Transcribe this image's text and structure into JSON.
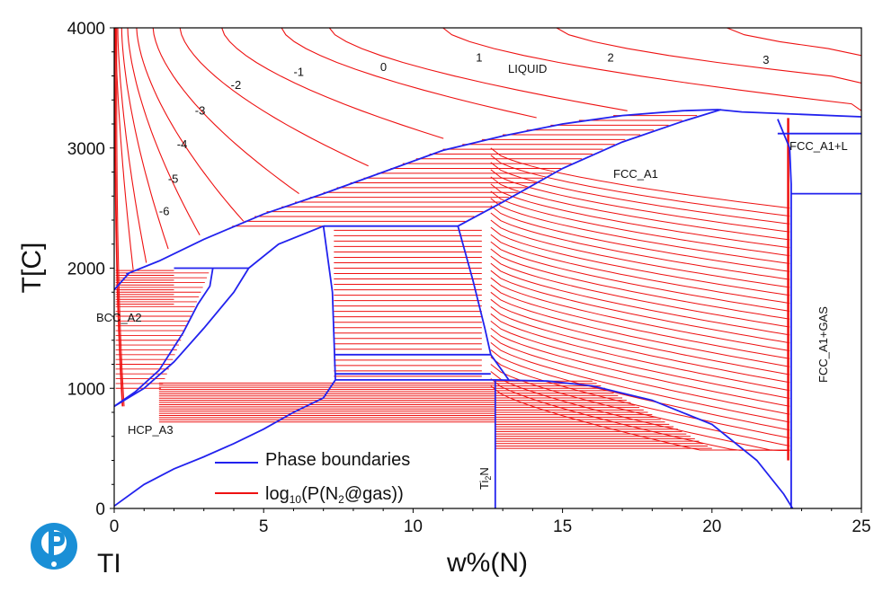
{
  "chart_data": {
    "type": "line",
    "xlabel": "w%(N)",
    "ylabel": "T[C]",
    "xlim": [
      0,
      25
    ],
    "ylim": [
      0,
      4000
    ],
    "x_ticks": [
      "0",
      "5",
      "10",
      "15",
      "20",
      "25"
    ],
    "y_ticks": [
      "0",
      "1000",
      "2000",
      "3000",
      "4000"
    ],
    "element_label": "TI",
    "legend": {
      "phase": "Phase boundaries",
      "iso_pre": "log",
      "iso_sub": "10",
      "iso_mid": "(P(N",
      "iso_sub2": "2",
      "iso_post": "@gas))"
    },
    "phase_labels": {
      "liquid": "LIQUID",
      "fcc": "FCC_A1",
      "fcc_l": "FCC_A1+L",
      "fcc_gas": "FCC_A1+GAS",
      "bcc": "BCC_A2",
      "hcp": "HCP_A3",
      "ti2n_main": "Ti",
      "ti2n_sub": "2",
      "ti2n_end": "N"
    },
    "isobar_labels": [
      {
        "text": "3",
        "x": 21.7,
        "y": 3700
      },
      {
        "text": "2",
        "x": 16.5,
        "y": 3720
      },
      {
        "text": "1",
        "x": 12.1,
        "y": 3720
      },
      {
        "text": "0",
        "x": 8.9,
        "y": 3640
      },
      {
        "text": "-1",
        "x": 6.0,
        "y": 3600
      },
      {
        "text": "-2",
        "x": 3.9,
        "y": 3490
      },
      {
        "text": "-3",
        "x": 2.7,
        "y": 3280
      },
      {
        "text": "-4",
        "x": 2.1,
        "y": 3000
      },
      {
        "text": "-5",
        "x": 1.8,
        "y": 2710
      },
      {
        "text": "-6",
        "x": 1.5,
        "y": 2440
      }
    ],
    "series": [
      {
        "name": "Phase boundaries",
        "color": "#2222ee"
      },
      {
        "name": "log10(P(N2@gas))",
        "color": "#ee1111"
      }
    ],
    "phase_boundaries": [
      [
        [
          0.4,
          1950
        ],
        [
          1.5,
          2060
        ],
        [
          3,
          2240
        ],
        [
          5,
          2450
        ],
        [
          7,
          2620
        ],
        [
          9,
          2800
        ],
        [
          11,
          2980
        ],
        [
          13,
          3100
        ],
        [
          15,
          3200
        ],
        [
          17,
          3270
        ],
        [
          19,
          3310
        ],
        [
          20.2,
          3320
        ],
        [
          21,
          3300
        ],
        [
          23,
          3280
        ],
        [
          25,
          3260
        ]
      ],
      [
        [
          0,
          1820
        ],
        [
          0.5,
          1960
        ]
      ],
      [
        [
          0,
          850
        ],
        [
          0.7,
          970
        ],
        [
          1.5,
          1150
        ],
        [
          2.3,
          1460
        ],
        [
          2.8,
          1700
        ],
        [
          3.2,
          1850
        ],
        [
          3.3,
          2000
        ]
      ],
      [
        [
          0,
          850
        ],
        [
          1,
          1000
        ],
        [
          2,
          1220
        ],
        [
          3,
          1500
        ],
        [
          4,
          1800
        ],
        [
          4.5,
          2000
        ],
        [
          5.5,
          2200
        ],
        [
          7,
          2350
        ]
      ],
      [
        [
          0,
          20
        ],
        [
          1,
          200
        ],
        [
          2,
          330
        ],
        [
          3,
          430
        ],
        [
          4,
          540
        ],
        [
          5,
          660
        ],
        [
          6,
          800
        ],
        [
          7,
          920
        ],
        [
          7.4,
          1070
        ]
      ],
      [
        [
          7.4,
          1070
        ],
        [
          12.75,
          1070
        ],
        [
          14.5,
          1060
        ],
        [
          16,
          1020
        ],
        [
          18,
          900
        ],
        [
          20,
          700
        ],
        [
          21.5,
          400
        ],
        [
          22.4,
          120
        ],
        [
          22.7,
          0
        ]
      ],
      [
        [
          7.0,
          2350
        ],
        [
          7.3,
          1800
        ],
        [
          7.4,
          1070
        ]
      ],
      [
        [
          7.0,
          2350
        ],
        [
          11.5,
          2350
        ]
      ],
      [
        [
          11.5,
          2350
        ],
        [
          12,
          1900
        ],
        [
          12.4,
          1500
        ],
        [
          12.6,
          1280
        ]
      ],
      [
        [
          12.6,
          1280
        ],
        [
          13.2,
          1070
        ]
      ],
      [
        [
          2.0,
          2000
        ],
        [
          4.5,
          2000
        ]
      ],
      [
        [
          12.75,
          1070
        ],
        [
          12.75,
          0
        ]
      ],
      [
        [
          11.5,
          2350
        ],
        [
          13,
          2550
        ],
        [
          15,
          2830
        ],
        [
          17,
          3050
        ],
        [
          19,
          3220
        ],
        [
          20.3,
          3320
        ]
      ],
      [
        [
          22.2,
          3240
        ],
        [
          22.6,
          3000
        ],
        [
          22.65,
          2700
        ],
        [
          22.65,
          0
        ]
      ],
      [
        [
          22.65,
          2620
        ],
        [
          25,
          2620
        ]
      ],
      [
        [
          22.2,
          3120
        ],
        [
          25,
          3120
        ]
      ],
      [
        [
          7.4,
          1280
        ],
        [
          12.6,
          1280
        ]
      ],
      [
        [
          7.4,
          1120
        ],
        [
          12.6,
          1120
        ]
      ]
    ]
  }
}
